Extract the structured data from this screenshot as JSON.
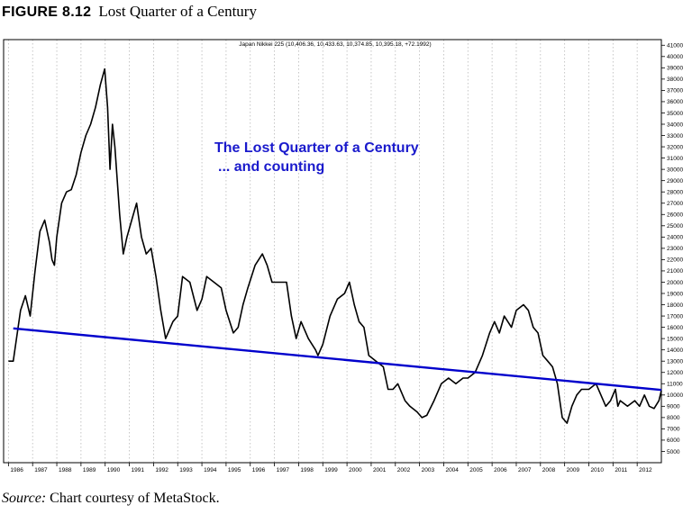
{
  "figure": {
    "number": "FIGURE 8.12",
    "title": "Lost Quarter of a Century"
  },
  "source": {
    "label": "Source:",
    "text": " Chart courtesy of MetaStock."
  },
  "colors": {
    "price_line": "#000000",
    "trend_line": "#0000cc",
    "annotation": "#1a1acc",
    "grid": "#b8b8b8"
  },
  "chart_data": {
    "type": "line",
    "header": "Japan Nikkei 225 (10,406.36, 10,433.63, 10,374.85, 10,395.18, +72.1992)",
    "annotation_lines": [
      "The Lost Quarter of a Century",
      "... and counting"
    ],
    "xlabel": "",
    "ylabel": "",
    "x_ticks": [
      "1986",
      "1987",
      "1988",
      "1989",
      "1990",
      "1991",
      "1992",
      "1993",
      "1994",
      "1995",
      "1996",
      "1997",
      "1998",
      "1999",
      "2000",
      "2001",
      "2002",
      "2003",
      "2004",
      "2005",
      "2006",
      "2007",
      "2008",
      "2009",
      "2010",
      "2011",
      "2012"
    ],
    "xlim": [
      1985.8,
      2013.0
    ],
    "ylim": [
      4000,
      41500
    ],
    "y_ticks": [
      5000,
      6000,
      7000,
      8000,
      9000,
      10000,
      11000,
      12000,
      13000,
      14000,
      15000,
      16000,
      17000,
      18000,
      19000,
      20000,
      21000,
      22000,
      23000,
      24000,
      25000,
      26000,
      27000,
      28000,
      29000,
      30000,
      31000,
      32000,
      33000,
      34000,
      35000,
      36000,
      37000,
      38000,
      39000,
      40000,
      41000
    ],
    "grid": "vertical dotted lines at each year",
    "series": [
      {
        "x": [
          1986.0,
          1986.2,
          1986.4,
          1986.5,
          1986.7,
          1986.9,
          1987.1,
          1987.3,
          1987.5,
          1987.7,
          1987.8,
          1987.9,
          1988.0,
          1988.2,
          1988.4,
          1988.6,
          1988.8,
          1989.0,
          1989.2,
          1989.4,
          1989.6,
          1989.8,
          1989.98,
          1990.1,
          1990.2,
          1990.3,
          1990.4,
          1990.6,
          1990.75,
          1990.9,
          1991.1,
          1991.3,
          1991.5,
          1991.7,
          1991.9,
          1992.1,
          1992.3,
          1992.5,
          1992.6,
          1992.8,
          1993.0,
          1993.2,
          1993.5,
          1993.8,
          1994.0,
          1994.2,
          1994.5,
          1994.8,
          1995.0,
          1995.3,
          1995.5,
          1995.7,
          1995.9,
          1996.2,
          1996.5,
          1996.7,
          1996.9,
          1997.2,
          1997.5,
          1997.7,
          1997.9,
          1998.1,
          1998.4,
          1998.7,
          1998.8,
          1999.0,
          1999.3,
          1999.6,
          1999.9,
          2000.1,
          2000.3,
          2000.5,
          2000.7,
          2000.9,
          2001.2,
          2001.5,
          2001.7,
          2001.9,
          2002.1,
          2002.4,
          2002.6,
          2002.9,
          2003.1,
          2003.3,
          2003.6,
          2003.9,
          2004.2,
          2004.5,
          2004.8,
          2005.0,
          2005.3,
          2005.6,
          2005.9,
          2006.1,
          2006.3,
          2006.5,
          2006.8,
          2007.0,
          2007.3,
          2007.5,
          2007.7,
          2007.9,
          2008.1,
          2008.3,
          2008.5,
          2008.7,
          2008.8,
          2008.9,
          2009.1,
          2009.3,
          2009.5,
          2009.7,
          2010.0,
          2010.3,
          2010.5,
          2010.7,
          2010.9,
          2011.1,
          2011.2,
          2011.3,
          2011.6,
          2011.9,
          2012.1,
          2012.3,
          2012.5,
          2012.7,
          2012.9,
          2013.0
        ],
        "y": [
          13000,
          13000,
          16000,
          17500,
          18800,
          17000,
          21000,
          24500,
          25500,
          23500,
          22000,
          21500,
          24000,
          27000,
          28000,
          28200,
          29500,
          31500,
          33000,
          34000,
          35500,
          37500,
          38900,
          35500,
          30000,
          34000,
          32000,
          26000,
          22500,
          24000,
          25500,
          27000,
          24000,
          22500,
          23000,
          20500,
          17500,
          15000,
          15500,
          16500,
          17000,
          20500,
          20000,
          17500,
          18500,
          20500,
          20000,
          19500,
          17500,
          15500,
          16000,
          18000,
          19500,
          21500,
          22500,
          21500,
          20000,
          20000,
          20000,
          17000,
          15000,
          16500,
          15000,
          14000,
          13500,
          14500,
          17000,
          18500,
          19000,
          20000,
          18000,
          16500,
          16000,
          13500,
          13000,
          12500,
          10500,
          10500,
          11000,
          9500,
          9000,
          8500,
          8000,
          8200,
          9500,
          11000,
          11500,
          11000,
          11500,
          11500,
          12000,
          13500,
          15500,
          16500,
          15500,
          17000,
          16000,
          17500,
          18000,
          17500,
          16000,
          15500,
          13500,
          13000,
          12500,
          11000,
          9500,
          8000,
          7500,
          9000,
          10000,
          10500,
          10500,
          11000,
          10000,
          9000,
          9500,
          10500,
          9000,
          9500,
          9000,
          9500,
          9000,
          10000,
          9000,
          8800,
          9500,
          10400
        ],
        "label": ""
      },
      {
        "type": "trendline",
        "x": [
          1986.2,
          2013.0
        ],
        "y": [
          15900,
          10450
        ],
        "label": ""
      }
    ]
  }
}
